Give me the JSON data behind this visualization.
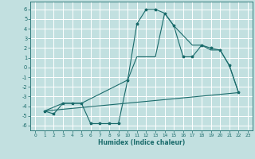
{
  "xlabel": "Humidex (Indice chaleur)",
  "bg_color": "#c2e0e0",
  "grid_color": "#ffffff",
  "line_color": "#1a6b6b",
  "xlim": [
    -0.5,
    23.5
  ],
  "ylim": [
    -6.5,
    6.8
  ],
  "xticks": [
    0,
    1,
    2,
    3,
    4,
    5,
    6,
    7,
    8,
    9,
    10,
    11,
    12,
    13,
    14,
    15,
    16,
    17,
    18,
    19,
    20,
    21,
    22,
    23
  ],
  "yticks": [
    -6,
    -5,
    -4,
    -3,
    -2,
    -1,
    0,
    1,
    2,
    3,
    4,
    5,
    6
  ],
  "line1_x": [
    1,
    2,
    3,
    4,
    5,
    6,
    7,
    8,
    9,
    10,
    11,
    12,
    13,
    14,
    15,
    16,
    17,
    18,
    19,
    20,
    21,
    22
  ],
  "line1_y": [
    -4.5,
    -4.8,
    -3.7,
    -3.7,
    -3.7,
    -5.8,
    -5.8,
    -5.8,
    -5.8,
    -1.3,
    4.5,
    6.0,
    6.0,
    5.6,
    4.3,
    1.1,
    1.1,
    2.3,
    2.0,
    1.8,
    0.2,
    -2.6
  ],
  "line2_x": [
    1,
    3,
    5,
    10,
    11,
    13,
    14,
    15,
    17,
    18,
    19,
    20,
    21,
    22
  ],
  "line2_y": [
    -4.5,
    -3.7,
    -3.7,
    -1.3,
    1.1,
    1.1,
    5.6,
    4.3,
    2.3,
    2.3,
    1.8,
    1.8,
    0.2,
    -2.6
  ],
  "line3_x": [
    1,
    22
  ],
  "line3_y": [
    -4.5,
    -2.6
  ],
  "marker_size": 2.5
}
